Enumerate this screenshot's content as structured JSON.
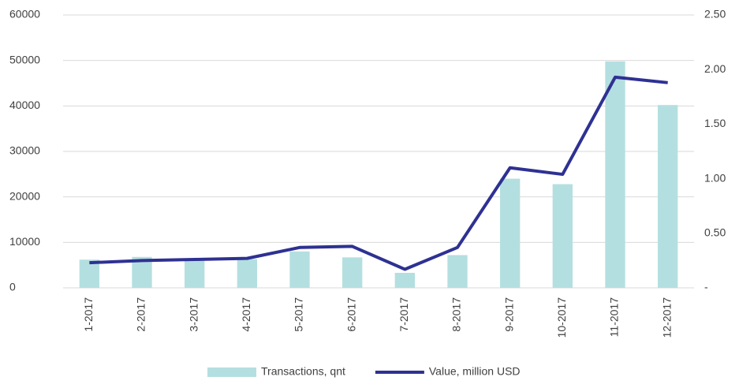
{
  "chart_data": {
    "type": "bar+line",
    "categories": [
      "1-2017",
      "2-2017",
      "3-2017",
      "4-2017",
      "5-2017",
      "6-2017",
      "7-2017",
      "8-2017",
      "9-2017",
      "10-2017",
      "11-2017",
      "12-2017"
    ],
    "series": [
      {
        "name": "Transactions, qnt",
        "type": "bar",
        "color": "#b4dfe0",
        "axis": "y",
        "values": [
          6200,
          6800,
          6200,
          6300,
          8000,
          6700,
          3300,
          7200,
          24000,
          22800,
          49800,
          40200
        ]
      },
      {
        "name": "Value, million USD",
        "type": "line",
        "color": "#2e3192",
        "axis": "y2",
        "values": [
          0.23,
          0.25,
          0.26,
          0.27,
          0.37,
          0.38,
          0.17,
          0.37,
          1.1,
          1.04,
          1.93,
          1.88
        ]
      }
    ],
    "ylim": [
      0,
      60000
    ],
    "yticks": [
      0,
      10000,
      20000,
      30000,
      40000,
      50000,
      60000
    ],
    "y2lim": [
      0,
      2.5
    ],
    "y2ticks": [
      {
        "value": 0,
        "label": "-"
      },
      {
        "value": 0.5,
        "label": "0.50"
      },
      {
        "value": 1,
        "label": "1.00"
      },
      {
        "value": 1.5,
        "label": "1.50"
      },
      {
        "value": 2,
        "label": "2.00"
      },
      {
        "value": 2.5,
        "label": "2.50"
      }
    ],
    "grid": true,
    "legend": "bottom"
  }
}
